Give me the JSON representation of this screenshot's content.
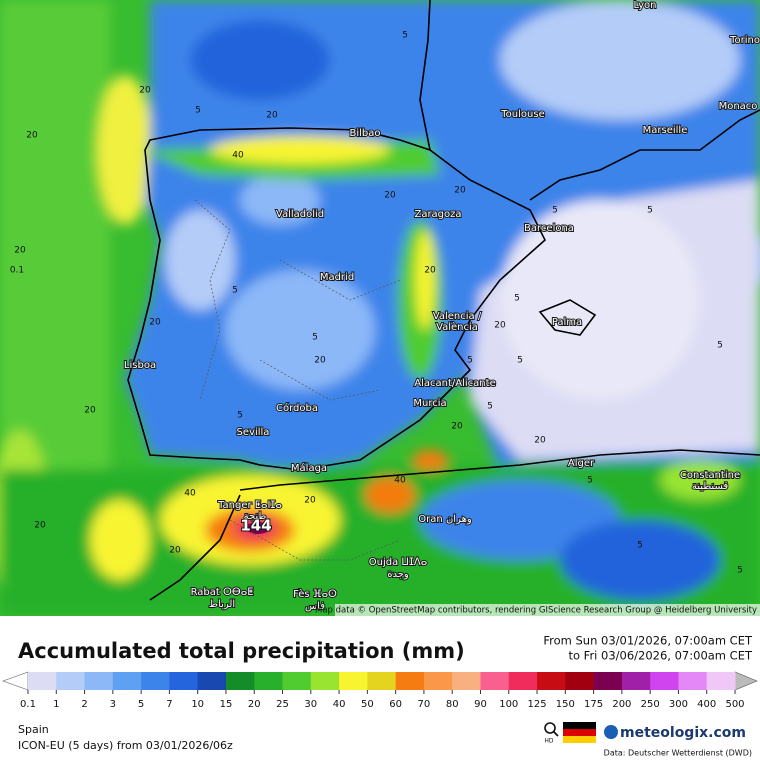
{
  "map": {
    "cities": [
      "Lyon",
      "Torino",
      "Monaco",
      "Toulouse",
      "Marseille",
      "Bilbao",
      "Valladolid",
      "Zaragoza",
      "Barcelona",
      "Madrid",
      "Valencia /",
      "València",
      "Palma",
      "Lisboa",
      "Alacant/Alicante",
      "Murcia",
      "Córdoba",
      "Sevilla",
      "Málaga",
      "Alger",
      "Constantine",
      "قسنطينة",
      "Tanger ⵟⴰⵏⵊⴰ",
      "طنجة",
      "Oran وهران",
      "Oujda ⵡⵊⴷⴰ",
      "وجدة",
      "Rabat ⵔⴱⴰⵟ",
      "الرباط",
      "Fès ⴼⴰⵙ",
      "فاس"
    ],
    "peak_label": "144",
    "contour_labels": [
      "20",
      "20",
      "20",
      "0.1",
      "5",
      "5",
      "40",
      "20",
      "20",
      "5",
      "5",
      "5",
      "20",
      "5",
      "5",
      "20",
      "5",
      "5",
      "20",
      "5",
      "20",
      "40",
      "40",
      "20",
      "20",
      "20",
      "5",
      "5",
      "5",
      "20",
      "5",
      "20",
      "20",
      "20",
      "5"
    ],
    "attribution": "Map data © OpenStreetMap contributors, rendering GIScience Research Group @ Heidelberg University"
  },
  "panel": {
    "title": "Accumulated total precipitation (mm)",
    "from": "From Sun 03/01/2026, 07:00am CET",
    "to": "to Fri 03/06/2026, 07:00am CET",
    "legend_labels": [
      "0.1",
      "1",
      "2",
      "3",
      "5",
      "7",
      "10",
      "15",
      "20",
      "25",
      "30",
      "40",
      "50",
      "60",
      "70",
      "80",
      "90",
      "100",
      "125",
      "150",
      "175",
      "200",
      "250",
      "300",
      "400",
      "500"
    ],
    "legend_colors": [
      "#dcdcf4",
      "#b4ccf8",
      "#8cb8f8",
      "#5ea0f2",
      "#3c84ea",
      "#2464dc",
      "#1848b0",
      "#148c28",
      "#28b02c",
      "#50cc30",
      "#98e430",
      "#f8f430",
      "#e4d420",
      "#f47c10",
      "#f89848",
      "#f8b080",
      "#f86090",
      "#f02c5c",
      "#c80c14",
      "#a00010",
      "#7c0050",
      "#a020a8",
      "#d044f0",
      "#e488f8",
      "#f0c8f8"
    ],
    "region": "Spain",
    "model": "ICON-EU (5 days) from 03/01/2026/06z",
    "hd": "HD",
    "brand": "meteologix.com",
    "source": "Data: Deutscher Wetterdienst (DWD)"
  }
}
